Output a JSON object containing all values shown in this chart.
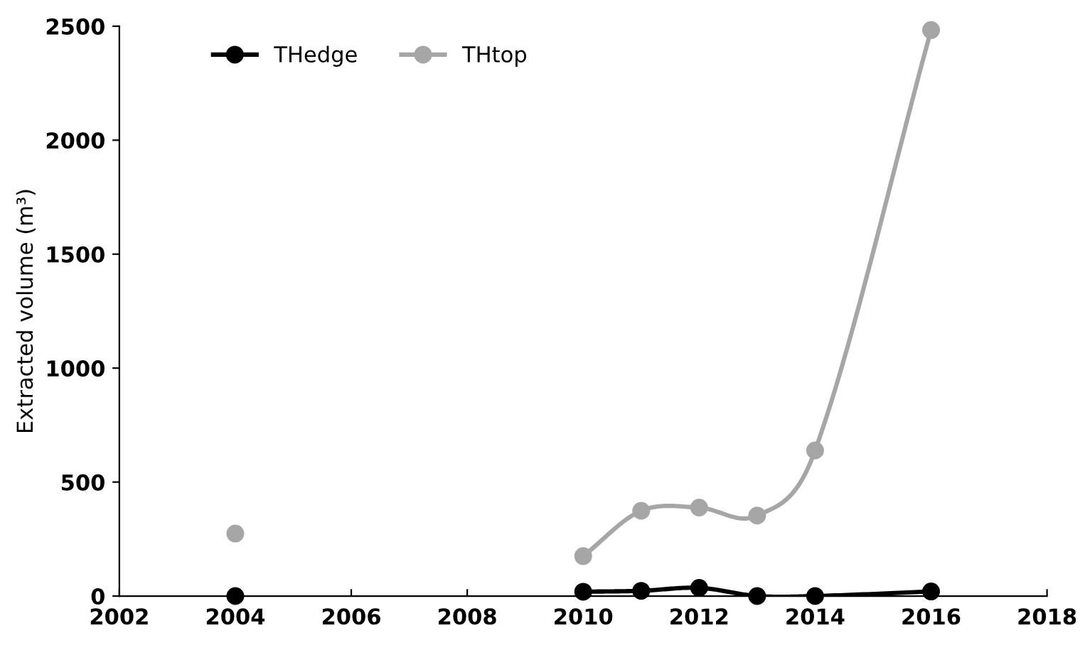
{
  "chart_data": {
    "type": "line",
    "ylabel": "Extracted volume (m³)",
    "x": [
      2004,
      2007,
      2010,
      2011,
      2012,
      2013,
      2014,
      2016
    ],
    "series": [
      {
        "name": "THedge",
        "color": "#000000",
        "values": [
          0,
          null,
          19,
          23,
          36,
          0,
          0,
          20
        ]
      },
      {
        "name": "THtop",
        "color": "#a6a6a6",
        "values": [
          274,
          null,
          175,
          374,
          388,
          353,
          639,
          2483
        ]
      }
    ],
    "xlim": [
      2002,
      2018
    ],
    "xticks": [
      2002,
      2004,
      2006,
      2008,
      2010,
      2012,
      2014,
      2016,
      2018
    ],
    "ylim": [
      0,
      2500
    ],
    "yticks": [
      0,
      500,
      1000,
      1500,
      2000,
      2500
    ],
    "grid": false,
    "legend": "top left",
    "marker": "circle",
    "line_style": "solid"
  }
}
